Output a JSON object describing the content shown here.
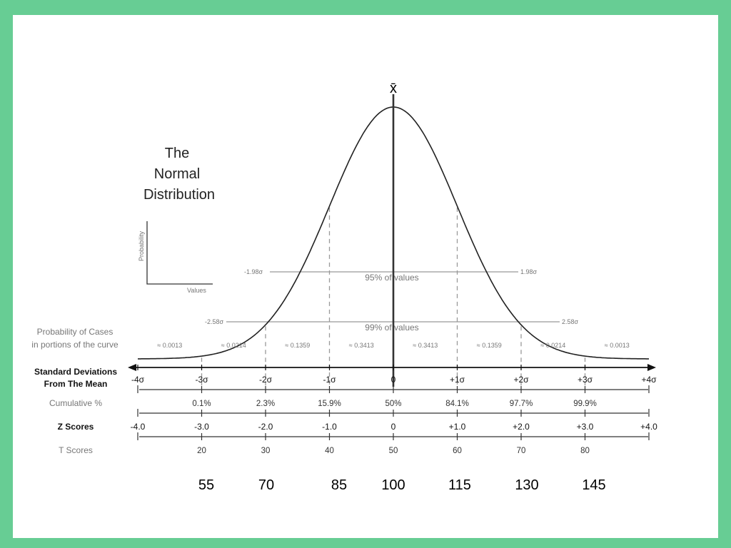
{
  "title_lines": [
    "The",
    "Normal",
    "Distribution"
  ],
  "mean_symbol": "x̄",
  "inset": {
    "y_label": "Probability",
    "x_label": "Values"
  },
  "intervals": {
    "label_95": "95% of values",
    "label_99": "99% of values",
    "left_95": "-1.98σ",
    "right_95": "1.98σ",
    "left_99": "-2.58σ",
    "right_99": "2.58σ"
  },
  "row_labels": {
    "probability_line1": "Probability of Cases",
    "probability_line2": "in portions of the curve",
    "sd_line1": "Standard Deviations",
    "sd_line2": "From The Mean",
    "cumulative": "Cumulative %",
    "z_scores": "Z Scores",
    "t_scores": "T Scores"
  },
  "probabilities": [
    "≈ 0.0013",
    "≈ 0.0214",
    "≈ 0.1359",
    "≈ 0.3413",
    "≈ 0.3413",
    "≈ 0.1359",
    "≈ 0.0214",
    "≈ 0.0013"
  ],
  "sigma_ticks": [
    "-4σ",
    "-3σ",
    "-2σ",
    "-1σ",
    "0",
    "+1σ",
    "+2σ",
    "+3σ",
    "+4σ"
  ],
  "cumulative_percent": [
    "0.1%",
    "2.3%",
    "15.9%",
    "50%",
    "84.1%",
    "97.7%",
    "99.9%"
  ],
  "z_scores": [
    "-4.0",
    "-3.0",
    "-2.0",
    "-1.0",
    "0",
    "+1.0",
    "+2.0",
    "+3.0",
    "+4.0"
  ],
  "t_scores": [
    "20",
    "30",
    "40",
    "50",
    "60",
    "70",
    "80"
  ],
  "raw_scores": [
    "55",
    "70",
    "85",
    "100",
    "115",
    "130",
    "145"
  ]
}
